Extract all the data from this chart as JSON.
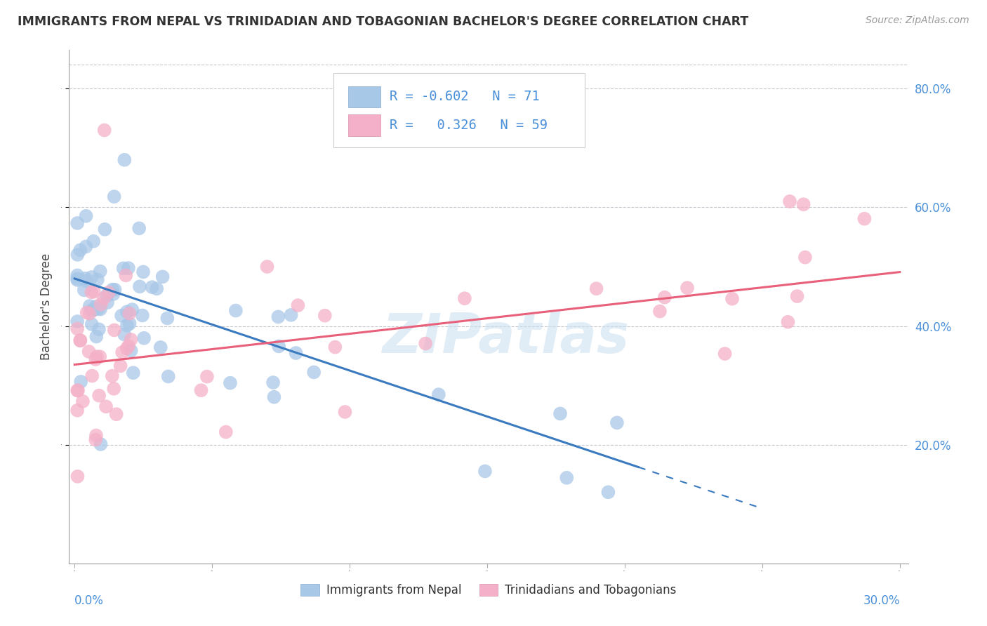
{
  "title": "IMMIGRANTS FROM NEPAL VS TRINIDADIAN AND TOBAGONIAN BACHELOR'S DEGREE CORRELATION CHART",
  "source": "Source: ZipAtlas.com",
  "ylabel": "Bachelor's Degree",
  "legend1_r": "-0.602",
  "legend1_n": "71",
  "legend2_r": "0.326",
  "legend2_n": "59",
  "legend_label1": "Immigrants from Nepal",
  "legend_label2": "Trinidadians and Tobagonians",
  "blue_color": "#a8c8e8",
  "pink_color": "#f4b0c8",
  "blue_line_color": "#3a7abf",
  "pink_line_color": "#e8607a",
  "watermark": "ZIPatlas",
  "background_color": "#ffffff",
  "xlim": [
    0.0,
    0.3
  ],
  "ylim": [
    0.0,
    0.85
  ],
  "nepal_slope": -1.55,
  "nepal_intercept": 0.48,
  "nepal_line_x_end": 0.205,
  "trini_slope": 0.52,
  "trini_intercept": 0.335,
  "trini_line_x_end": 0.3
}
